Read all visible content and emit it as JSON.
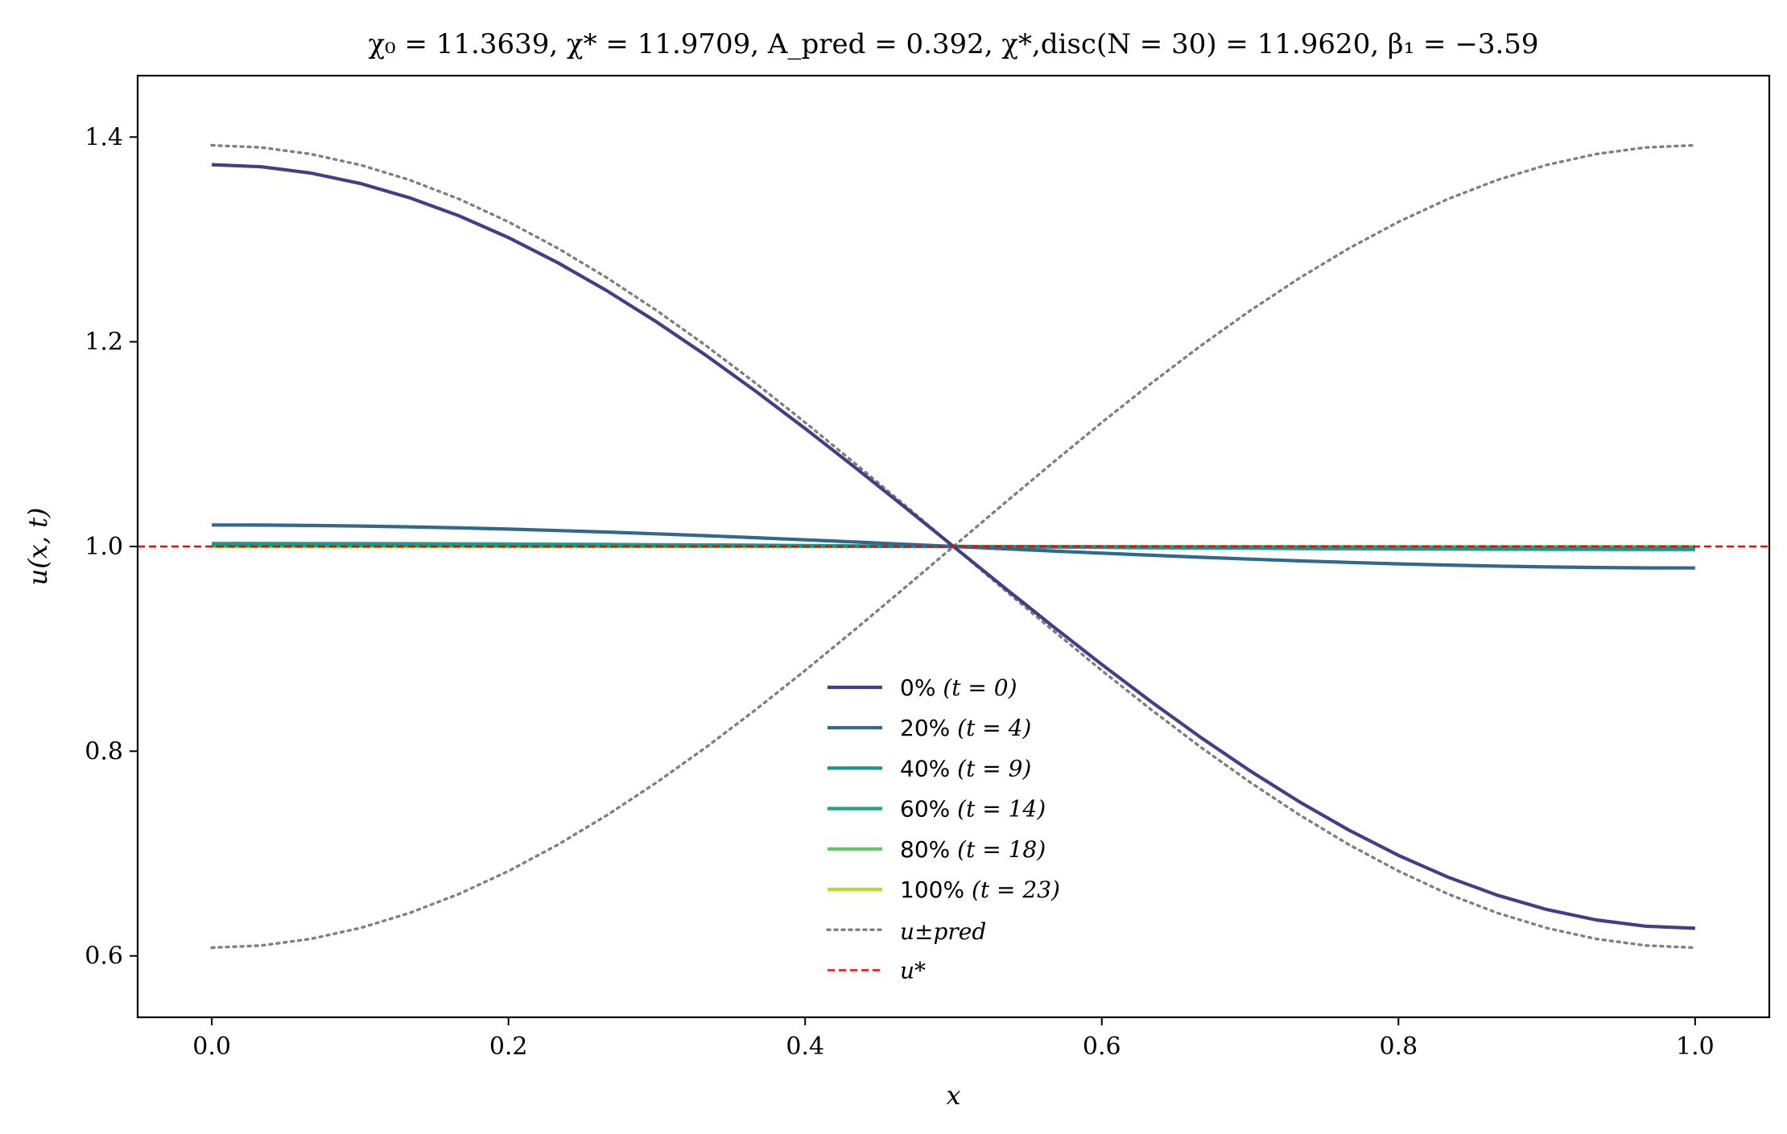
{
  "chart_data": {
    "type": "line",
    "title": "χ₀ = 11.3639,  χ* = 11.9709,  A_pred = 0.392,  χ*,disc(N = 30) = 11.9620,  β₁ = −3.59",
    "xlabel": "x",
    "ylabel": "u(x, t)",
    "xlim": [
      -0.05,
      1.05
    ],
    "ylim": [
      0.54,
      1.46
    ],
    "xticks": [
      0.0,
      0.2,
      0.4,
      0.6,
      0.8,
      1.0
    ],
    "xtick_labels": [
      "0.0",
      "0.2",
      "0.4",
      "0.6",
      "0.8",
      "1.0"
    ],
    "yticks": [
      0.6,
      0.8,
      1.0,
      1.2,
      1.4
    ],
    "ytick_labels": [
      "0.6",
      "0.8",
      "1.0",
      "1.2",
      "1.4"
    ],
    "grid": false,
    "legend_position": "lower-center",
    "series": [
      {
        "name": "0% (t = 0)",
        "label_main": "0%",
        "label_math": "(t = 0)",
        "color": "#433e85",
        "style": "solid",
        "amplitude": 0.373,
        "x_max_truncated": true
      },
      {
        "name": "20% (t = 4)",
        "label_main": "20%",
        "label_math": "(t = 4)",
        "color": "#31688e",
        "style": "solid",
        "amplitude": 0.021
      },
      {
        "name": "40% (t = 9)",
        "label_main": "40%",
        "label_math": "(t = 9)",
        "color": "#21918c",
        "style": "solid",
        "amplitude": 0.0015
      },
      {
        "name": "60% (t = 14)",
        "label_main": "60%",
        "label_math": "(t = 14)",
        "color": "#20a386",
        "style": "solid",
        "amplitude": 0.003
      },
      {
        "name": "80% (t = 18)",
        "label_main": "80%",
        "label_math": "(t = 18)",
        "color": "#5ec962",
        "style": "solid",
        "amplitude": 0.0005
      },
      {
        "name": "100% (t = 23)",
        "label_main": "100%",
        "label_math": "(t = 23)",
        "color": "#b5de2b",
        "style": "solid",
        "amplitude": 0.0
      }
    ],
    "reference_lines": [
      {
        "name": "u±pred (upper)",
        "label_math": "u±pred",
        "color": "#808080",
        "style": "dotted",
        "amplitude": 0.392,
        "direction": "down"
      },
      {
        "name": "u±pred (lower)",
        "color": "#808080",
        "style": "dotted",
        "amplitude": 0.392,
        "direction": "up"
      },
      {
        "name": "u*",
        "label_math": "u*",
        "color": "#ff0000",
        "style": "dashed",
        "value": 1.0
      }
    ],
    "curve_shape": "u(x) = 1 + A·cos(πx)",
    "x_samples": 31
  }
}
